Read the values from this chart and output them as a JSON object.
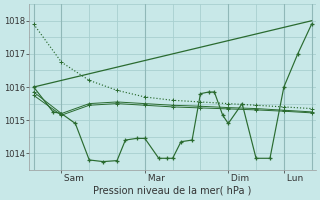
{
  "title": "Pression niveau de la mer( hPa )",
  "bg_color": "#c8e8e8",
  "grid_color": "#a8d0d0",
  "line_color": "#2a6b30",
  "ylim": [
    1013.5,
    1018.5
  ],
  "yticks": [
    1014,
    1015,
    1016,
    1017,
    1018
  ],
  "xtick_labels": [
    " Sam",
    " Mar",
    " Dim",
    " Lun"
  ],
  "xtick_pos": [
    1,
    4,
    7,
    9
  ],
  "vline_pos": [
    0,
    1,
    4,
    7,
    9,
    10
  ],
  "series": {
    "dotted_diag": {
      "x": [
        0,
        1,
        2,
        3,
        4,
        5,
        6,
        7,
        8,
        9,
        10
      ],
      "y": [
        1017.9,
        1016.75,
        1016.2,
        1015.9,
        1015.7,
        1015.6,
        1015.55,
        1015.5,
        1015.45,
        1015.4,
        1015.35
      ],
      "style": "dotted"
    },
    "solid_diag": {
      "x": [
        0,
        10
      ],
      "y": [
        1016.0,
        1018.0
      ],
      "style": "solid"
    },
    "zigzag": {
      "x": [
        0,
        0.7,
        1,
        1.5,
        2,
        2.5,
        3,
        3.3,
        3.7,
        4,
        4.5,
        4.8,
        5,
        5.3,
        5.7,
        6,
        6.3,
        6.5,
        6.8,
        7,
        7.5,
        8,
        8.5,
        9,
        9.5,
        10
      ],
      "y": [
        1016.0,
        1015.25,
        1015.2,
        1014.9,
        1013.8,
        1013.75,
        1013.78,
        1014.4,
        1014.45,
        1014.45,
        1013.85,
        1013.85,
        1013.85,
        1014.35,
        1014.4,
        1015.8,
        1015.85,
        1015.85,
        1015.15,
        1014.9,
        1015.5,
        1013.85,
        1013.85,
        1016.0,
        1017.0,
        1017.9
      ],
      "style": "solid_markers"
    },
    "flat1": {
      "x": [
        0,
        1,
        2,
        3,
        4,
        5,
        6,
        7,
        8,
        9,
        10
      ],
      "y": [
        1015.85,
        1015.2,
        1015.5,
        1015.55,
        1015.5,
        1015.45,
        1015.42,
        1015.38,
        1015.35,
        1015.3,
        1015.25
      ],
      "style": "markers_only"
    },
    "flat2": {
      "x": [
        0,
        1,
        2,
        3,
        4,
        5,
        6,
        7,
        8,
        9,
        10
      ],
      "y": [
        1015.75,
        1015.15,
        1015.45,
        1015.5,
        1015.45,
        1015.4,
        1015.37,
        1015.34,
        1015.31,
        1015.27,
        1015.22
      ],
      "style": "markers_only"
    }
  }
}
